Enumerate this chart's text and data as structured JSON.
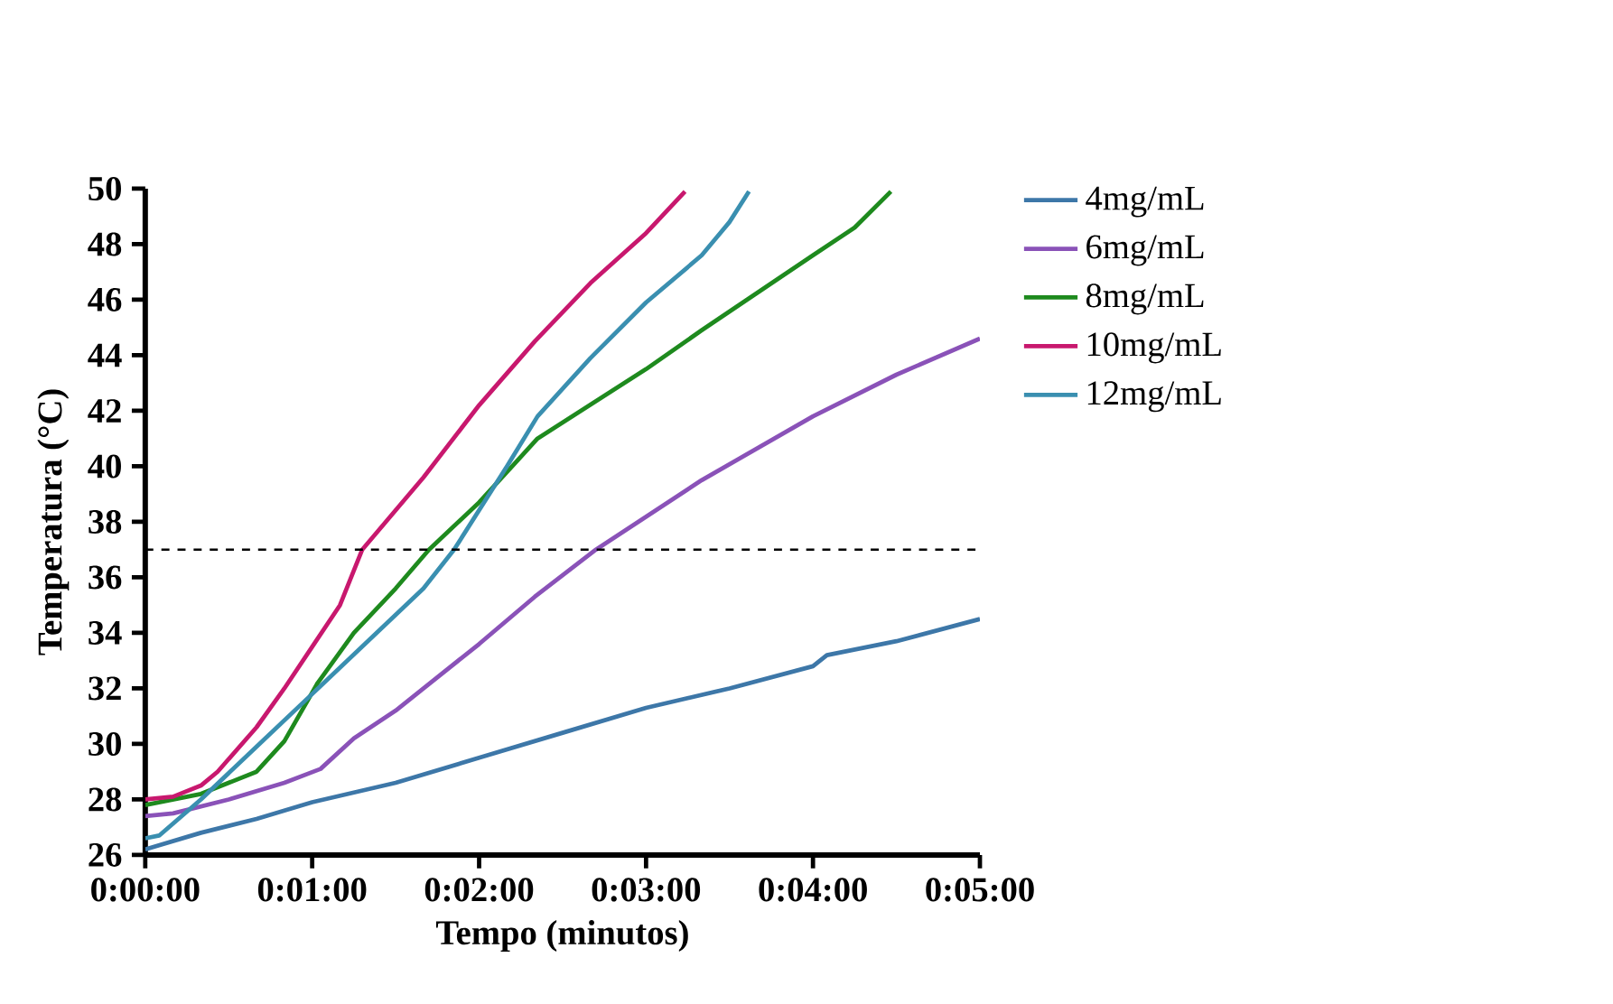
{
  "chart_data": {
    "type": "line",
    "xlabel": "Tempo (minutos)",
    "ylabel": "Temperatura (°C)",
    "xlim": [
      0,
      300
    ],
    "xticks": [
      {
        "value": 0,
        "label": "0:00:00"
      },
      {
        "value": 60,
        "label": "0:01:00"
      },
      {
        "value": 120,
        "label": "0:02:00"
      },
      {
        "value": 180,
        "label": "0:03:00"
      },
      {
        "value": 240,
        "label": "0:04:00"
      },
      {
        "value": 300,
        "label": "0:05:00"
      }
    ],
    "ylim": [
      26,
      50
    ],
    "yticks": [
      26,
      28,
      30,
      32,
      34,
      36,
      38,
      40,
      42,
      44,
      46,
      48,
      50
    ],
    "grid": false,
    "legend": "top right",
    "marker": "none",
    "line_style": "solid",
    "ref_lines": [
      {
        "axis": "y",
        "value": 37,
        "line_style": "dashed",
        "color": "#000000"
      }
    ],
    "series": [
      {
        "name": "4mg/mL",
        "color": "#3d77a8",
        "x": [
          0,
          20,
          40,
          60,
          90,
          120,
          150,
          180,
          210,
          240,
          245,
          270,
          300
        ],
        "values": [
          26.2,
          26.8,
          27.3,
          27.9,
          28.6,
          29.5,
          30.4,
          31.3,
          32.0,
          32.8,
          33.2,
          33.7,
          34.5
        ]
      },
      {
        "name": "6mg/mL",
        "color": "#8a52b8",
        "x": [
          0,
          10,
          30,
          50,
          63,
          75,
          90,
          120,
          140,
          162,
          200,
          240,
          270,
          300
        ],
        "values": [
          27.4,
          27.5,
          28.0,
          28.6,
          29.1,
          30.2,
          31.2,
          33.6,
          35.3,
          37.0,
          39.5,
          41.8,
          43.3,
          44.6
        ]
      },
      {
        "name": "8mg/mL",
        "color": "#1e8a1e",
        "x": [
          0,
          20,
          40,
          50,
          62,
          75,
          90,
          102,
          120,
          141,
          180,
          200,
          240,
          255,
          268
        ],
        "values": [
          27.8,
          28.2,
          29.0,
          30.1,
          32.2,
          34.0,
          35.6,
          37.0,
          38.7,
          41.0,
          43.5,
          44.9,
          47.6,
          48.6,
          49.9
        ]
      },
      {
        "name": "10mg/mL",
        "color": "#c8186e",
        "x": [
          0,
          10,
          20,
          26,
          40,
          50,
          60,
          70,
          78,
          100,
          120,
          140,
          160,
          180,
          194
        ],
        "values": [
          28.0,
          28.1,
          28.5,
          29.0,
          30.6,
          32.0,
          33.5,
          35.0,
          37.0,
          39.6,
          42.2,
          44.5,
          46.6,
          48.4,
          49.9
        ]
      },
      {
        "name": "12mg/mL",
        "color": "#3a8fb0",
        "x": [
          0,
          5,
          20,
          40,
          60,
          80,
          100,
          111,
          130,
          141,
          160,
          180,
          200,
          210,
          217
        ],
        "values": [
          26.6,
          26.7,
          28.0,
          29.9,
          31.8,
          33.7,
          35.6,
          37.0,
          40.0,
          41.8,
          43.9,
          45.9,
          47.6,
          48.8,
          49.9
        ]
      }
    ]
  }
}
